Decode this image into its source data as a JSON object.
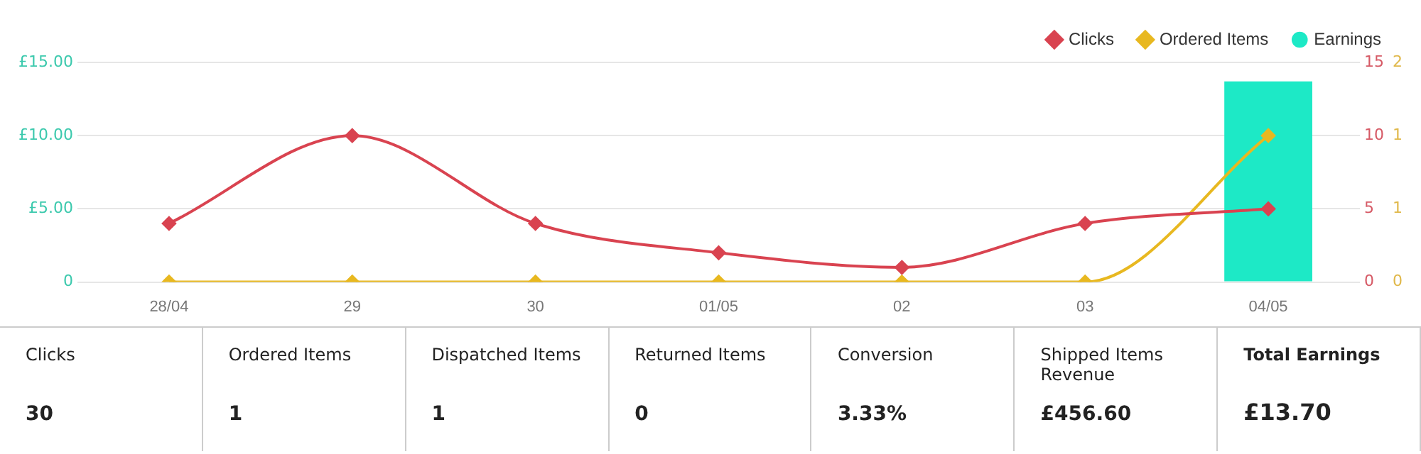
{
  "chart_data": [
    {
      "type": "line",
      "categories": [
        "28/04",
        "29",
        "30",
        "01/05",
        "02",
        "03",
        "04/05"
      ],
      "series": [
        {
          "name": "Earnings",
          "type": "bar",
          "color": "#1de9c6",
          "axis": "y",
          "values": [
            0,
            0,
            0,
            0,
            0,
            0,
            13.7
          ]
        },
        {
          "name": "Clicks",
          "color": "#d94350",
          "axis": "y2",
          "values": [
            4,
            10,
            4,
            2,
            1,
            4,
            5
          ]
        },
        {
          "name": "Ordered Items",
          "color": "#e8b820",
          "axis": "y3",
          "values": [
            0,
            0,
            0,
            0,
            0,
            0,
            1
          ]
        }
      ],
      "ylim": [
        0,
        15
      ],
      "yticks": [
        0,
        {
          "value": 5,
          "label": "£5.00"
        },
        {
          "value": 10,
          "label": "£10.00"
        },
        {
          "value": 15,
          "label": "£15.00"
        }
      ],
      "y2lim": [
        0,
        15
      ],
      "y2ticks": [
        0,
        5,
        10,
        15
      ],
      "y3lim": [
        0,
        1.5
      ],
      "y3ticks": [
        0,
        {
          "value": 0.5,
          "label": "1"
        },
        1,
        {
          "value": 1.5,
          "label": "2"
        }
      ],
      "grid": "y",
      "legend": "top right",
      "marker": "diamond",
      "line_style": "solid"
    },
    {
      "type": "other",
      "annotations": [
        "Clicks",
        "30",
        "Ordered Items",
        "1",
        "Dispatched Items",
        "1",
        "Returned Items",
        "0",
        "Conversion",
        "3.33%",
        "Shipped Items Revenue",
        "£456.60",
        "Total Earnings",
        "£13.70"
      ]
    }
  ]
}
